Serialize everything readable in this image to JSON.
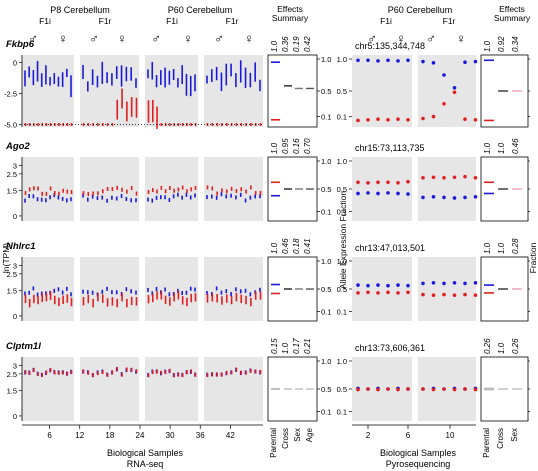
{
  "header": {
    "left_title": "P8 Cerebellum",
    "mid_title": "P60 Cerebellum",
    "right_title": "P60 Cerebellum",
    "effects_title_1": "Effects",
    "effects_title_2": "Summary",
    "f1i": "F1i",
    "f1r": "F1r",
    "male": "♂",
    "female": "♀"
  },
  "axes": {
    "left_ylabel": "ln(TPM)",
    "mid_ylabel": "Allele Expression Fraction",
    "right_ylabel": "Fraction",
    "left_xlabel_1": "Biological Samples",
    "left_xlabel_2": "RNA-seq",
    "right_xlabel_1": "Biological Samples",
    "right_xlabel_2": "Pyrosequencing",
    "left_xticks": [
      "6",
      "12",
      "18",
      "24",
      "30",
      "36",
      "42"
    ],
    "right_xticks": [
      "2",
      "6",
      "10"
    ],
    "frac_ticks": [
      "1.0",
      "0.5",
      "0.1"
    ],
    "effects_left_categories": [
      "Parental",
      "Cross",
      "Sex",
      "Age"
    ],
    "effects_right_categories": [
      "Parental",
      "Cross",
      "Sex"
    ]
  },
  "colors": {
    "blue": "#1a1adb",
    "red": "#e02020",
    "grey_bg": "#e6e6e6"
  },
  "chart_data": [
    {
      "type": "scatter",
      "gene": "Fkbp6",
      "yticks": [
        "0",
        "-2.5",
        "-5.0"
      ],
      "ylim": [
        -5.2,
        0.6
      ],
      "effect_values": [
        "1.0",
        "0.36",
        "0.19",
        "0.42"
      ],
      "pyro_region": "chr5:135,344,748",
      "pyro_effect_values": [
        "1.0",
        "0.92",
        "0.34"
      ],
      "pyro_blue": [
        0.98,
        0.98,
        0.97,
        0.98,
        0.97,
        0.98,
        0.96,
        0.94,
        0.75,
        0.55,
        0.95,
        0.96
      ],
      "pyro_red": [
        0.04,
        0.05,
        0.06,
        0.05,
        0.06,
        0.05,
        0.07,
        0.1,
        0.3,
        0.48,
        0.06,
        0.05
      ]
    },
    {
      "type": "scatter",
      "gene": "Ago2",
      "yticks": [
        "3",
        "2.5",
        "1.5",
        "0"
      ],
      "ylim": [
        -0.3,
        3.5
      ],
      "effect_values": [
        "1.0",
        "0.95",
        "0.16",
        "0.70"
      ],
      "pyro_region": "chr15:73,113,735",
      "pyro_effect_values": [
        "1.0",
        "1.0",
        "0.46"
      ],
      "pyro_blue": [
        0.42,
        0.43,
        0.42,
        0.43,
        0.42,
        0.41,
        0.35,
        0.36,
        0.35,
        0.34,
        0.35,
        0.36
      ],
      "pyro_red": [
        0.62,
        0.61,
        0.62,
        0.62,
        0.61,
        0.63,
        0.7,
        0.71,
        0.7,
        0.71,
        0.72,
        0.7
      ]
    },
    {
      "type": "scatter",
      "gene": "Nhlrc1",
      "yticks": [
        "3",
        "2.5",
        "1.5",
        "0"
      ],
      "ylim": [
        -0.3,
        3.5
      ],
      "effect_values": [
        "1.0",
        "0.46",
        "0.18",
        "0.41"
      ],
      "pyro_region": "chr13:47,013,501",
      "pyro_effect_values": [
        "1.0",
        "1.0",
        "0.28"
      ],
      "pyro_blue": [
        0.57,
        0.56,
        0.57,
        0.56,
        0.57,
        0.56,
        0.6,
        0.61,
        0.6,
        0.61,
        0.6,
        0.61
      ],
      "pyro_red": [
        0.43,
        0.44,
        0.43,
        0.44,
        0.43,
        0.44,
        0.4,
        0.39,
        0.4,
        0.39,
        0.4,
        0.39
      ]
    },
    {
      "type": "scatter",
      "gene": "Clptm1l",
      "yticks": [
        "3",
        "2.5",
        "1.5",
        "0"
      ],
      "ylim": [
        -0.3,
        3.5
      ],
      "effect_values": [
        "0.15",
        "1.0",
        "0.17",
        "0.21"
      ],
      "pyro_region": "chr13:73,606,361",
      "pyro_effect_values": [
        "0.26",
        "1.0",
        "0.26"
      ],
      "pyro_blue": [
        0.51,
        0.5,
        0.51,
        0.5,
        0.51,
        0.5,
        0.5,
        0.51,
        0.5,
        0.51,
        0.5,
        0.51
      ],
      "pyro_red": [
        0.49,
        0.5,
        0.49,
        0.5,
        0.49,
        0.5,
        0.5,
        0.49,
        0.5,
        0.49,
        0.5,
        0.49
      ]
    }
  ]
}
